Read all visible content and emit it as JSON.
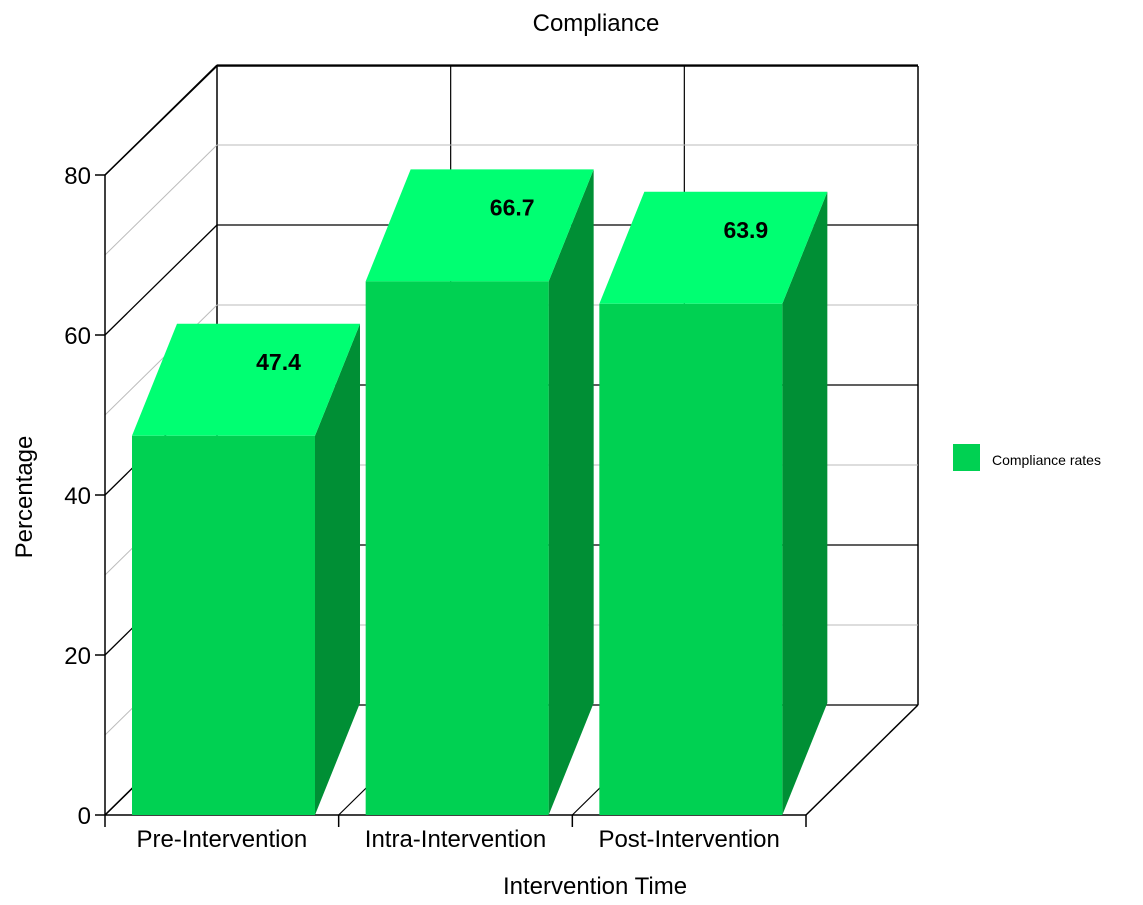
{
  "chart_data": {
    "type": "bar",
    "title": "Compliance",
    "xlabel": "Intervention Time",
    "ylabel": "Percentage",
    "categories": [
      "Pre-Intervention",
      "Intra-Intervention",
      "Post-Intervention"
    ],
    "series": [
      {
        "name": "Compliance rates",
        "values": [
          47.4,
          66.7,
          63.9
        ]
      }
    ],
    "data_labels": [
      "47.4",
      "66.7",
      "63.9"
    ],
    "ylim": [
      0,
      80
    ],
    "y_ticks": [
      0,
      20,
      40,
      60,
      80
    ],
    "y_tick_labels": [
      "0",
      "20",
      "40",
      "60",
      "80"
    ],
    "grid": true,
    "three_d": true,
    "legend_position": "right",
    "colors": {
      "bar_front": "#00d152",
      "bar_top": "#00ff72",
      "bar_side": "#008f35",
      "legend_swatch": "#00d152"
    }
  }
}
